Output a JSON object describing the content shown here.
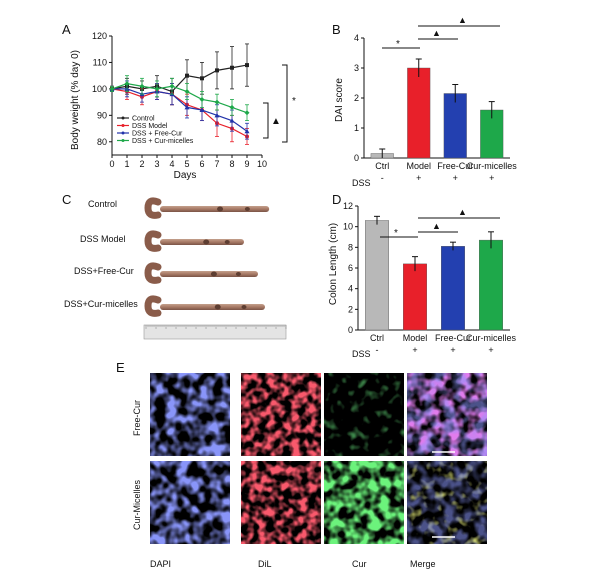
{
  "panels": {
    "A": "A",
    "B": "B",
    "C": "C",
    "D": "D",
    "E": "E"
  },
  "chart_data": [
    {
      "id": "A",
      "type": "line",
      "xlabel": "Days",
      "ylabel": "Body weight (% day 0)",
      "xlim": [
        0,
        10
      ],
      "ylim": [
        75,
        120
      ],
      "x_ticks": [
        0,
        1,
        2,
        3,
        4,
        5,
        6,
        7,
        8,
        9,
        10
      ],
      "y_ticks": [
        80,
        90,
        100,
        110,
        120
      ],
      "legend_position": "lower-left",
      "series": [
        {
          "name": "Control",
          "color": "#222222",
          "marker": "square",
          "x": [
            0,
            1,
            2,
            3,
            4,
            5,
            6,
            7,
            8,
            9
          ],
          "y": [
            100,
            101,
            100,
            101,
            99,
            105,
            104,
            107,
            108,
            109
          ],
          "err": [
            1,
            3,
            3,
            4,
            5,
            6,
            6,
            7,
            8,
            8
          ]
        },
        {
          "name": "DSS Model",
          "color": "#e8202a",
          "marker": "circle",
          "x": [
            0,
            1,
            2,
            3,
            4,
            5,
            6,
            7,
            8,
            9
          ],
          "y": [
            100,
            99,
            97,
            99,
            98,
            94,
            92,
            87,
            85,
            82
          ],
          "err": [
            1,
            3,
            3,
            3,
            4,
            4,
            4,
            5,
            5,
            3
          ]
        },
        {
          "name": "DSS + Free-Cur",
          "color": "#2233aa",
          "marker": "triangle",
          "x": [
            0,
            1,
            2,
            3,
            4,
            5,
            6,
            7,
            8,
            9
          ],
          "y": [
            100,
            100,
            98,
            99,
            98,
            93,
            92,
            90,
            88,
            84
          ],
          "err": [
            1,
            3,
            3,
            3,
            4,
            4,
            4,
            4,
            4,
            3
          ]
        },
        {
          "name": "DSS + Cur-micelles",
          "color": "#1ea84a",
          "marker": "diamond",
          "x": [
            0,
            1,
            2,
            3,
            4,
            5,
            6,
            7,
            8,
            9
          ],
          "y": [
            100,
            102,
            101,
            100,
            101,
            99,
            96,
            95,
            93,
            91
          ],
          "err": [
            1,
            3,
            3,
            3,
            3,
            3,
            3,
            3,
            3,
            3
          ]
        }
      ],
      "annotations": [
        "*",
        "▲"
      ]
    },
    {
      "id": "B",
      "type": "bar",
      "ylabel": "DAI score",
      "ylim": [
        0,
        4
      ],
      "y_ticks": [
        0,
        1,
        2,
        3,
        4
      ],
      "categories": [
        "Ctrl",
        "Model",
        "Free-Cur",
        "Cur-micelles"
      ],
      "values": [
        0.15,
        3.0,
        2.15,
        1.6
      ],
      "errors": [
        0.15,
        0.3,
        0.3,
        0.28
      ],
      "colors": [
        "#b8b8b8",
        "#e8202a",
        "#2340b0",
        "#1ea84a"
      ],
      "dss_label": "DSS",
      "dss_marks": [
        "-",
        "+",
        "+",
        "+"
      ],
      "annotations": [
        "*",
        "▲",
        "▲"
      ]
    },
    {
      "id": "D",
      "type": "bar",
      "ylabel": "Colon Length (cm)",
      "ylim": [
        0,
        12
      ],
      "y_ticks": [
        0,
        2,
        4,
        6,
        8,
        10,
        12
      ],
      "categories": [
        "Ctrl",
        "Model",
        "Free-Cur",
        "Cur-micelles"
      ],
      "values": [
        10.6,
        6.4,
        8.1,
        8.7
      ],
      "errors": [
        0.4,
        0.7,
        0.4,
        0.8
      ],
      "colors": [
        "#b8b8b8",
        "#e8202a",
        "#2340b0",
        "#1ea84a"
      ],
      "dss_label": "DSS",
      "dss_marks": [
        "-",
        "+",
        "+",
        "+"
      ],
      "annotations": [
        "*",
        "▲",
        "▲"
      ]
    }
  ],
  "panel_c": {
    "labels": [
      "Control",
      "DSS Model",
      "DSS+Free-Cur",
      "DSS+Cur-micelles"
    ],
    "colon_lengths_fraction": [
      0.78,
      0.6,
      0.7,
      0.75
    ]
  },
  "panel_e": {
    "row_labels": [
      "Free-Cur",
      "Cur-Micelles"
    ],
    "column_labels": [
      "DAPI",
      "DiL",
      "Cur",
      "Merge"
    ],
    "channel_colors": [
      "#3a4bd8",
      "#e0202a",
      "#2bb83a",
      "#b040b0"
    ]
  }
}
